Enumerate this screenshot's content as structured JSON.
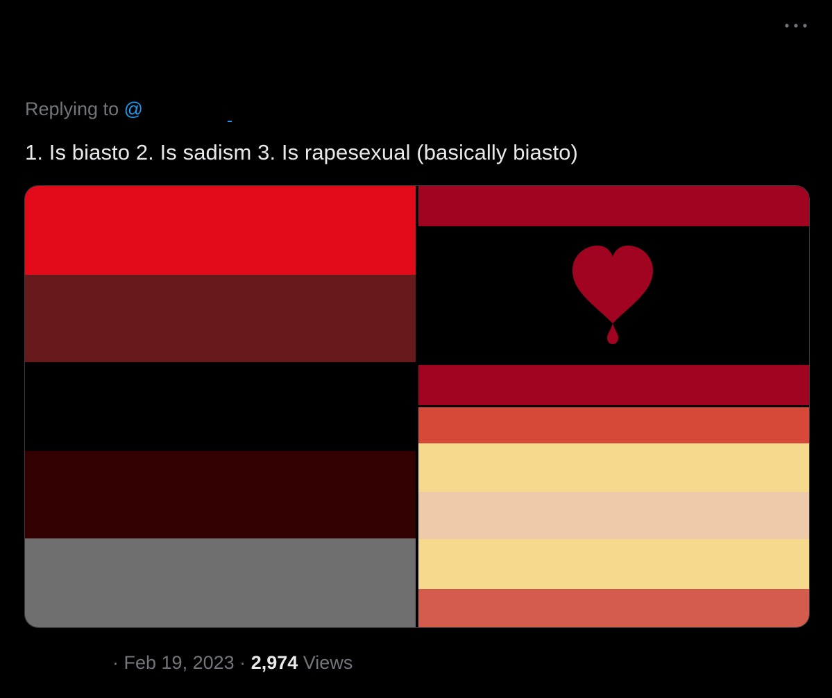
{
  "tweet": {
    "more_icon": "more-horizontal-icon",
    "replying_prefix": "Replying to",
    "mention_symbol": "@",
    "text": "1. Is biasto 2. Is sadism 3. Is rapesexual (basically biasto)",
    "dot_separator": "·",
    "date": "Feb 19, 2023",
    "views_count": "2,974",
    "views_label": "Views"
  },
  "colors": {
    "background": "#000000",
    "text_primary": "#e7e9ea",
    "text_secondary": "#71767b",
    "mention": "#1d9bf0"
  },
  "media": {
    "images": [
      {
        "name": "left-flag",
        "stripes": [
          "#e30b1a",
          "#671a1c",
          "#000000",
          "#320000",
          "#6f6f6f"
        ]
      },
      {
        "name": "blood-heart-flag",
        "stripes": [
          "#a00421",
          "#000000",
          "#a00421"
        ],
        "emblem": "bleeding-heart-icon"
      },
      {
        "name": "striped-flag",
        "stripes": [
          "#d64838",
          "#f5da8e",
          "#eccaaa",
          "#f5da8e",
          "#d35c4d"
        ]
      }
    ]
  }
}
